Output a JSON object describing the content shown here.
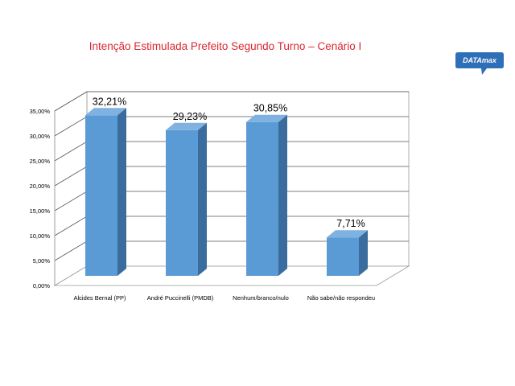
{
  "logo": {
    "text": "DATAmax"
  },
  "chart_data": {
    "type": "bar",
    "title": "Intenção Estimulada Prefeito Segundo Turno – Cenário I",
    "categories": [
      "Alcides Bernal (PP)",
      "André Puccinelli (PMDB)",
      "Nenhum/branco/nulo",
      "Não sabe/não respondeu"
    ],
    "values": [
      32.21,
      29.23,
      30.85,
      7.71
    ],
    "data_labels": [
      "32,21%",
      "29,23%",
      "30,85%",
      "7,71%"
    ],
    "y_ticks": [
      "0,00%",
      "5,00%",
      "10,00%",
      "15,00%",
      "20,00%",
      "25,00%",
      "30,00%",
      "35,00%"
    ],
    "ylim": [
      0,
      35
    ],
    "xlabel": "",
    "ylabel": "",
    "grid": true,
    "style": "3d-column",
    "colors": {
      "bar_front": "#5b9bd5",
      "bar_side": "#3a6d9e",
      "bar_top": "#7fb2e0",
      "title": "#d9282f",
      "logo_bg": "#2e6fb7"
    }
  }
}
